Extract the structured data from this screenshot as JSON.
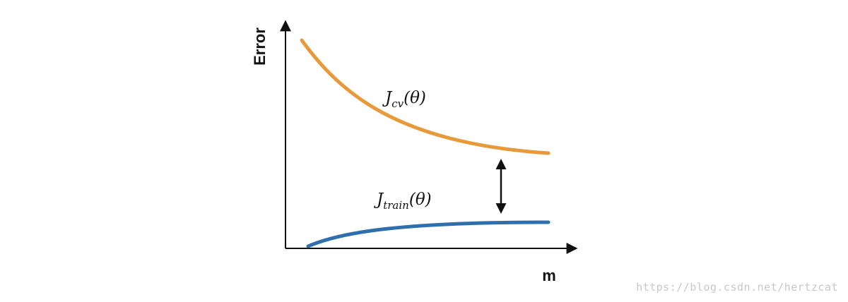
{
  "axes": {
    "y_title": "Error",
    "x_title": "m"
  },
  "curves": {
    "cv": {
      "label_main": "J",
      "label_sub": "cv",
      "label_arg": "(θ)",
      "color": "#E8993A"
    },
    "train": {
      "label_main": "J",
      "label_sub": "train",
      "label_arg": "(θ)",
      "color": "#2F6FAE"
    }
  },
  "watermark": "https://blog.csdn.net/hertzcat"
}
